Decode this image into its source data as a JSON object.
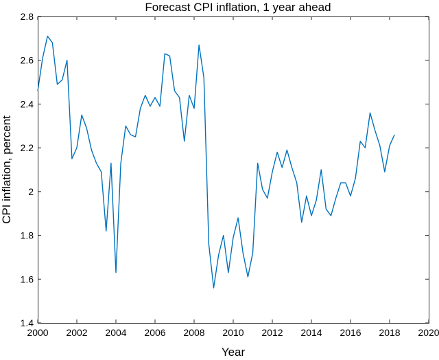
{
  "chart_data": {
    "type": "line",
    "title": "Forecast CPI inflation, 1 year ahead",
    "xlabel": "Year",
    "ylabel": "CPI inflation, percent",
    "xlim": [
      2000,
      2020
    ],
    "ylim": [
      1.4,
      2.8
    ],
    "grid": false,
    "x_ticks": [
      "2000",
      "2002",
      "2004",
      "2006",
      "2008",
      "2010",
      "2012",
      "2014",
      "2016",
      "2018",
      "2020"
    ],
    "y_ticks": [
      "1.4",
      "1.6",
      "1.8",
      "2",
      "2.2",
      "2.4",
      "2.6",
      "2.8"
    ],
    "line_color": "#0072BD",
    "series": [
      {
        "x": [
          2000.0,
          2000.25,
          2000.5,
          2000.75,
          2001.0,
          2001.25,
          2001.5,
          2001.75,
          2002.0,
          2002.25,
          2002.5,
          2002.75,
          2003.0,
          2003.25,
          2003.5,
          2003.75,
          2004.0,
          2004.25,
          2004.5,
          2004.75,
          2005.0,
          2005.25,
          2005.5,
          2005.75,
          2006.0,
          2006.25,
          2006.5,
          2006.75,
          2007.0,
          2007.25,
          2007.5,
          2007.75,
          2008.0,
          2008.25,
          2008.5,
          2008.75,
          2009.0,
          2009.25,
          2009.5,
          2009.75,
          2010.0,
          2010.25,
          2010.5,
          2010.75,
          2011.0,
          2011.25,
          2011.5,
          2011.75,
          2012.0,
          2012.25,
          2012.5,
          2012.75,
          2013.0,
          2013.25,
          2013.5,
          2013.75,
          2014.0,
          2014.25,
          2014.5,
          2014.75,
          2015.0,
          2015.25,
          2015.5,
          2015.75,
          2016.0,
          2016.25,
          2016.5,
          2016.75,
          2017.0,
          2017.25,
          2017.5,
          2017.75,
          2018.0,
          2018.25
        ],
        "values": [
          2.46,
          2.61,
          2.71,
          2.68,
          2.49,
          2.51,
          2.6,
          2.15,
          2.2,
          2.35,
          2.29,
          2.19,
          2.13,
          2.09,
          1.82,
          2.13,
          1.63,
          2.13,
          2.3,
          2.26,
          2.25,
          2.38,
          2.44,
          2.39,
          2.43,
          2.39,
          2.63,
          2.62,
          2.46,
          2.43,
          2.23,
          2.44,
          2.38,
          2.67,
          2.52,
          1.76,
          1.56,
          1.71,
          1.8,
          1.63,
          1.79,
          1.88,
          1.72,
          1.61,
          1.72,
          2.13,
          2.01,
          1.97,
          2.09,
          2.18,
          2.11,
          2.19,
          2.11,
          2.04,
          1.86,
          1.98,
          1.89,
          1.96,
          2.1,
          1.92,
          1.89,
          1.97,
          2.04,
          2.04,
          1.98,
          2.06,
          2.23,
          2.2,
          2.36,
          2.28,
          2.21,
          2.09,
          2.21,
          2.26
        ]
      }
    ]
  }
}
